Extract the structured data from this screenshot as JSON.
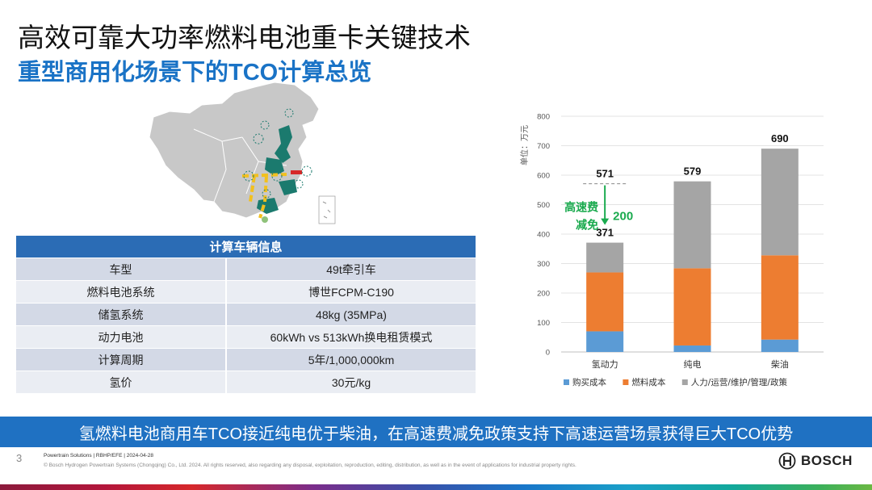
{
  "header": {
    "title": "高效可靠大功率燃料电池重卡关键技术",
    "subtitle": "重型商用化场景下的TCO计算总览"
  },
  "table": {
    "header": "计算车辆信息",
    "rows": [
      {
        "label": "车型",
        "value": "49t牵引车"
      },
      {
        "label": "燃料电池系统",
        "value": "博世FCPM-C190"
      },
      {
        "label": "储氢系统",
        "value": "48kg (35MPa)"
      },
      {
        "label": "动力电池",
        "value": "60kWh vs 513kWh换电租赁模式"
      },
      {
        "label": "计算周期",
        "value": "5年/1,000,000km"
      },
      {
        "label": "氢价",
        "value": "30元/kg"
      }
    ]
  },
  "chart_data": {
    "type": "bar",
    "stacked": true,
    "categories": [
      "氢动力",
      "纯电",
      "柴油"
    ],
    "series": [
      {
        "name": "购买成本",
        "color": "#5b9bd5",
        "values": [
          70,
          22,
          42
        ]
      },
      {
        "name": "燃料成本",
        "color": "#ed7d31",
        "values": [
          200,
          262,
          286
        ]
      },
      {
        "name": "人力/运营/维护/管理/政策",
        "color": "#a5a5a5",
        "values": [
          101,
          295,
          362
        ]
      }
    ],
    "totals": [
      "371",
      "579",
      "690"
    ],
    "before_toll_relief": "571",
    "annotation": {
      "text_line1": "高速费",
      "text_line2": "减免",
      "value": "200",
      "color": "#1aaa4e"
    },
    "ylabel": "单位：万元",
    "ylim": [
      0,
      800
    ],
    "yticks": [
      "0",
      "100",
      "200",
      "300",
      "400",
      "500",
      "600",
      "700",
      "800"
    ],
    "legend_position": "bottom"
  },
  "banner": {
    "text": "氢燃料电池商用车TCO接近纯电优于柴油，在高速费减免政策支持下高速运营场景获得巨大TCO优势"
  },
  "footer": {
    "page_number": "3",
    "line1": "Powertrain Solutions | RBHP/EFE | 2024-04-28",
    "line2": "© Bosch Hydrogen Powertrain Systems (Chongqing) Co., Ltd. 2024. All rights reserved, also regarding any disposal, exploitation, reproduction, editing, distribution, as well as in the event of applications for industrial property rights.",
    "logo": "BOSCH"
  },
  "colors": {
    "accent_blue": "#1a73c6",
    "banner_blue": "#1f71c2",
    "map_gray": "#c8c8c8",
    "map_teal": "#1b7a6e",
    "route_yellow": "#f2c01e"
  }
}
